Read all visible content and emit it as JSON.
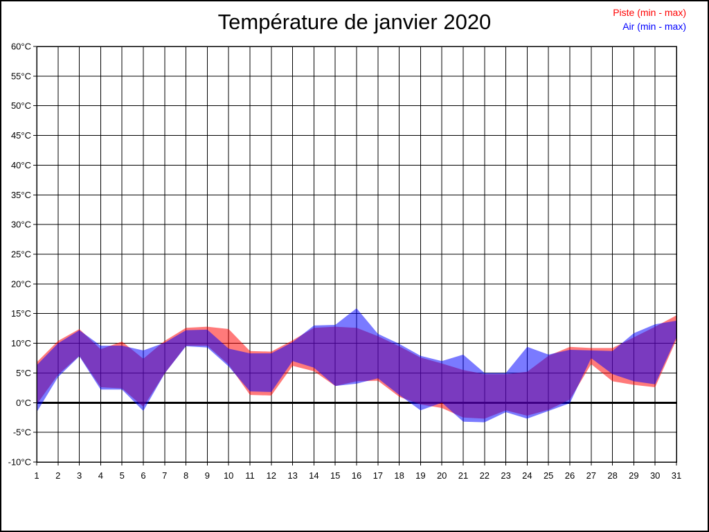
{
  "page": {
    "background": "#FFFFFF",
    "border_color": "#000000"
  },
  "title": "Température de janvier 2020",
  "legend": {
    "items": [
      {
        "label": "Piste (min - max)",
        "color": "#FF0000"
      },
      {
        "label": "Air (min - max)",
        "color": "#0000FF"
      }
    ]
  },
  "chart_data": {
    "type": "area",
    "title": "Température de janvier 2020",
    "xlabel": "",
    "ylabel": "",
    "x": [
      1,
      2,
      3,
      4,
      5,
      6,
      7,
      8,
      9,
      10,
      11,
      12,
      13,
      14,
      15,
      16,
      17,
      18,
      19,
      20,
      21,
      22,
      23,
      24,
      25,
      26,
      27,
      28,
      29,
      30,
      31
    ],
    "ylim": [
      -10,
      60
    ],
    "ytick_step": 5,
    "ytick_suffix": "°C",
    "grid": true,
    "grid_color": "#000000",
    "zero_line": true,
    "zero_line_color": "#000000",
    "legend_position": "top-right",
    "series": [
      {
        "name": "Piste (min - max)",
        "legend_color": "#FF0000",
        "fill": "rgba(255,0,0,0.52)",
        "min": [
          -0.3,
          4.7,
          7.9,
          2.6,
          2.4,
          -0.7,
          4.9,
          9.6,
          9.6,
          6.4,
          1.3,
          1.2,
          6.2,
          5.3,
          2.8,
          3.6,
          3.7,
          1.0,
          -0.3,
          -0.9,
          -2.5,
          -2.7,
          -1.3,
          -2.2,
          -1.2,
          0.5,
          6.5,
          3.6,
          3.0,
          2.6,
          10.6
        ],
        "max": [
          6.8,
          10.4,
          12.4,
          9.0,
          10.3,
          7.4,
          10.4,
          12.6,
          12.8,
          12.4,
          8.7,
          8.6,
          10.5,
          12.6,
          12.8,
          12.6,
          11.2,
          9.5,
          7.6,
          6.6,
          5.5,
          4.8,
          4.8,
          5.2,
          7.9,
          9.4,
          9.2,
          9.2,
          11.0,
          12.8,
          14.7
        ]
      },
      {
        "name": "Air (min - max)",
        "legend_color": "#0000FF",
        "fill": "rgba(0,0,255,0.52)",
        "min": [
          -1.6,
          4.3,
          7.8,
          2.2,
          2.2,
          -1.4,
          4.9,
          9.5,
          9.3,
          6.1,
          1.9,
          1.8,
          7.0,
          5.9,
          2.8,
          3.2,
          4.1,
          1.3,
          -1.3,
          0.0,
          -3.2,
          -3.3,
          -1.6,
          -2.7,
          -1.4,
          -0.1,
          7.5,
          4.8,
          3.6,
          3.1,
          11.0
        ],
        "max": [
          6.3,
          10.0,
          12.2,
          9.6,
          9.6,
          8.8,
          10.1,
          12.2,
          12.3,
          9.1,
          8.3,
          8.3,
          10.2,
          13.0,
          13.1,
          15.9,
          11.6,
          9.9,
          7.9,
          7.0,
          8.1,
          5.0,
          5.0,
          9.4,
          8.1,
          8.9,
          8.8,
          8.7,
          11.7,
          13.2,
          13.8
        ]
      }
    ]
  }
}
